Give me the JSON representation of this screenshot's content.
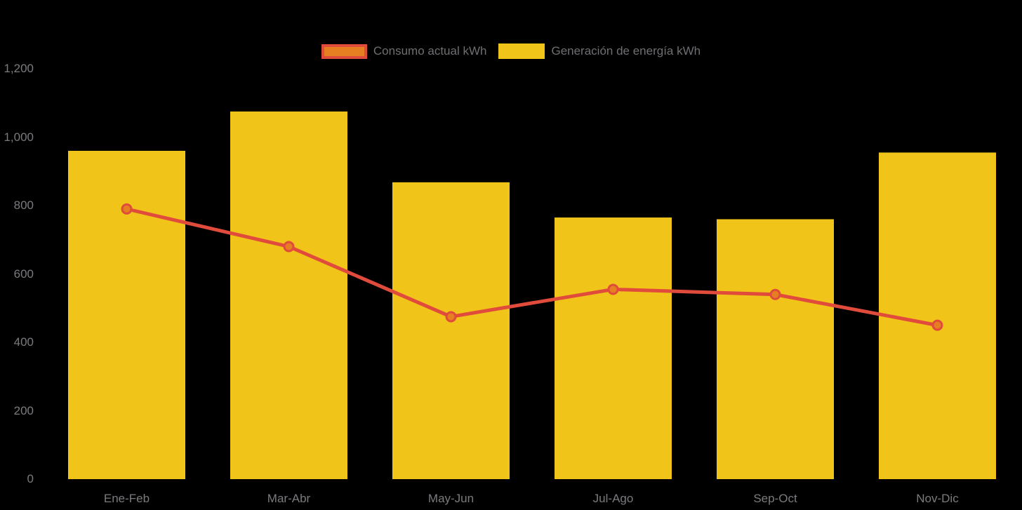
{
  "chart_data": {
    "type": "bar",
    "title": "",
    "categories": [
      "Ene-Feb",
      "Mar-Abr",
      "May-Jun",
      "Jul-Ago",
      "Sep-Oct",
      "Nov-Dic"
    ],
    "series": [
      {
        "name": "Consumo actual kWh",
        "render": "line",
        "color": "#E04B3B",
        "marker_fill": "#E67E22",
        "values": [
          790,
          680,
          475,
          555,
          540,
          450
        ]
      },
      {
        "name": "Generación de energía kWh",
        "render": "bar",
        "color": "#F0C419",
        "values": [
          960,
          1075,
          868,
          765,
          760,
          955
        ]
      }
    ],
    "xlabel": "",
    "ylabel": "",
    "ylim": [
      0,
      1200
    ],
    "ytick_labels": [
      "0",
      "200",
      "400",
      "600",
      "800",
      "1,000",
      "1,200"
    ],
    "grid": false,
    "legend_position": "top-center",
    "background_color": "#000000",
    "axis_text_color": "#7A7B7E",
    "legend_text_color": "#6E6F72"
  }
}
